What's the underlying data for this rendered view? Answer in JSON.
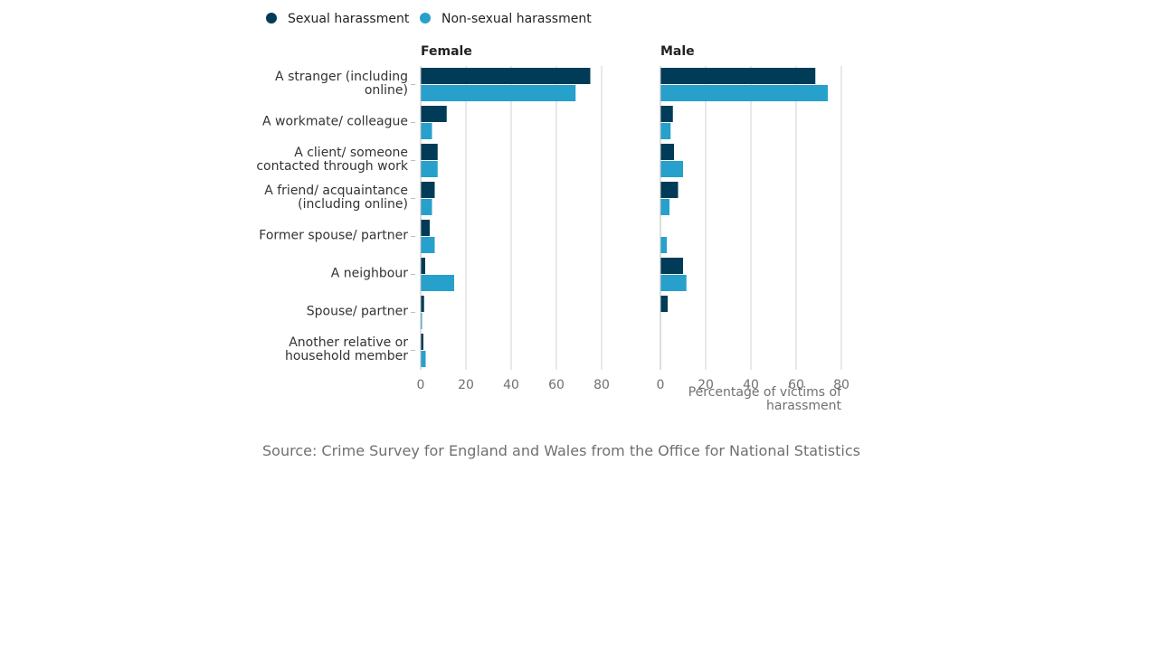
{
  "chart_data": {
    "type": "bar",
    "orientation": "horizontal",
    "categories": [
      [
        "A stranger (including",
        "online)"
      ],
      [
        "A workmate/ colleague"
      ],
      [
        "A client/ someone",
        "contacted through work"
      ],
      [
        "A friend/ acquaintance",
        "(including online)"
      ],
      [
        "Former spouse/ partner"
      ],
      [
        "A neighbour"
      ],
      [
        "Spouse/ partner"
      ],
      [
        "Another relative or",
        "household member"
      ]
    ],
    "legend": [
      {
        "name": "Sexual harassment",
        "color": "#003c57"
      },
      {
        "name": "Non-sexual harassment",
        "color": "#27a0cc"
      }
    ],
    "legend_placement": "top-left",
    "panels": [
      {
        "title": "Female",
        "series": [
          {
            "name": "Sexual harassment",
            "values": [
              75,
              11.5,
              7.5,
              6.2,
              4,
              2,
              1.5,
              1.2
            ]
          },
          {
            "name": "Non-sexual harassment",
            "values": [
              68.5,
              5,
              7.5,
              5,
              6.2,
              14.8,
              0.6,
              2.2
            ]
          }
        ],
        "xlim": [
          0,
          80
        ],
        "xticks": [
          "0",
          "20",
          "40",
          "60",
          "80"
        ]
      },
      {
        "title": "Male",
        "series": [
          {
            "name": "Sexual harassment",
            "values": [
              68.5,
              5.5,
              6,
              7.8,
              0,
              10,
              3.2,
              0
            ]
          },
          {
            "name": "Non-sexual harassment",
            "values": [
              74,
              4.5,
              10,
              4,
              2.8,
              11.5,
              0,
              0
            ]
          }
        ],
        "xlim": [
          0,
          80
        ],
        "xticks": [
          "0",
          "20",
          "40",
          "60",
          "80"
        ]
      }
    ],
    "xlabel": [
      "Percentage of victims of",
      "harassment"
    ],
    "grid": true
  },
  "source": "Source: Crime Survey for England and Wales from the Office for National Statistics"
}
